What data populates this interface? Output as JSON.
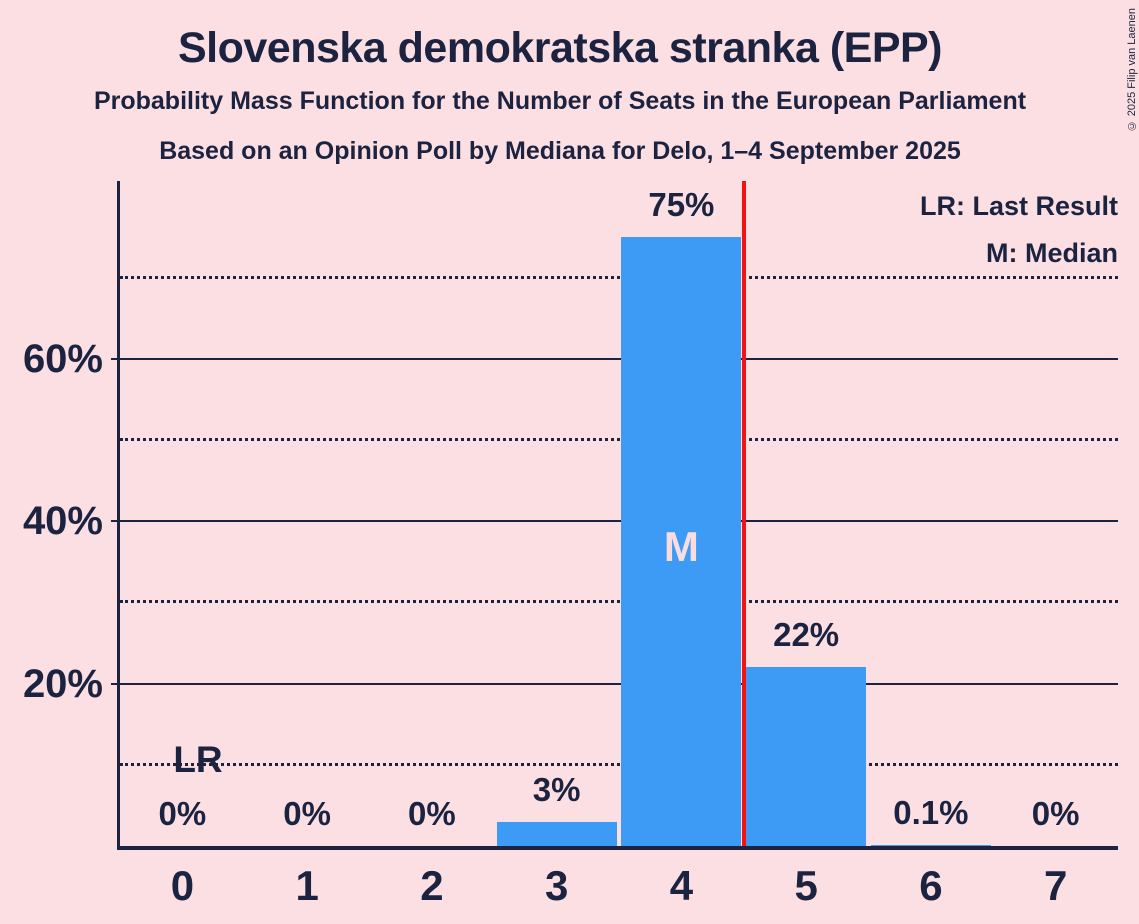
{
  "header": {
    "title": "Slovenska demokratska stranka (EPP)",
    "subtitle1": "Probability Mass Function for the Number of Seats in the European Parliament",
    "subtitle2": "Based on an Opinion Poll by Mediana for Delo, 1–4 September 2025"
  },
  "legend": {
    "lr": "LR: Last Result",
    "m": "M: Median"
  },
  "copyright": "© 2025 Filip van Laenen",
  "chart_data": {
    "type": "bar",
    "title": "Slovenska demokratska stranka (EPP)",
    "xlabel": "",
    "ylabel": "",
    "categories": [
      "0",
      "1",
      "2",
      "3",
      "4",
      "5",
      "6",
      "7"
    ],
    "values": [
      0,
      0,
      0,
      3,
      75,
      22,
      0.1,
      0
    ],
    "value_labels": [
      "0%",
      "0%",
      "0%",
      "3%",
      "75%",
      "22%",
      "0.1%",
      "0%"
    ],
    "ylim": [
      0,
      82
    ],
    "y_major_gridlines": [
      20,
      40,
      60
    ],
    "y_major_tick_labels": [
      "20%",
      "40%",
      "60%"
    ],
    "y_minor_gridlines": [
      10,
      30,
      50,
      70
    ],
    "grid": "on",
    "legend_position": "top-right",
    "annotations": {
      "median_category_index": 4,
      "median_marker": "M",
      "last_result_label": "LR",
      "last_result_line_x_seats": 4.5
    },
    "colors": {
      "background": "#fcdfe2",
      "bar": "#3d9af5",
      "text": "#1b2340",
      "last_result_line": "#f01414",
      "median_marker_text": "#f8dce0"
    }
  }
}
